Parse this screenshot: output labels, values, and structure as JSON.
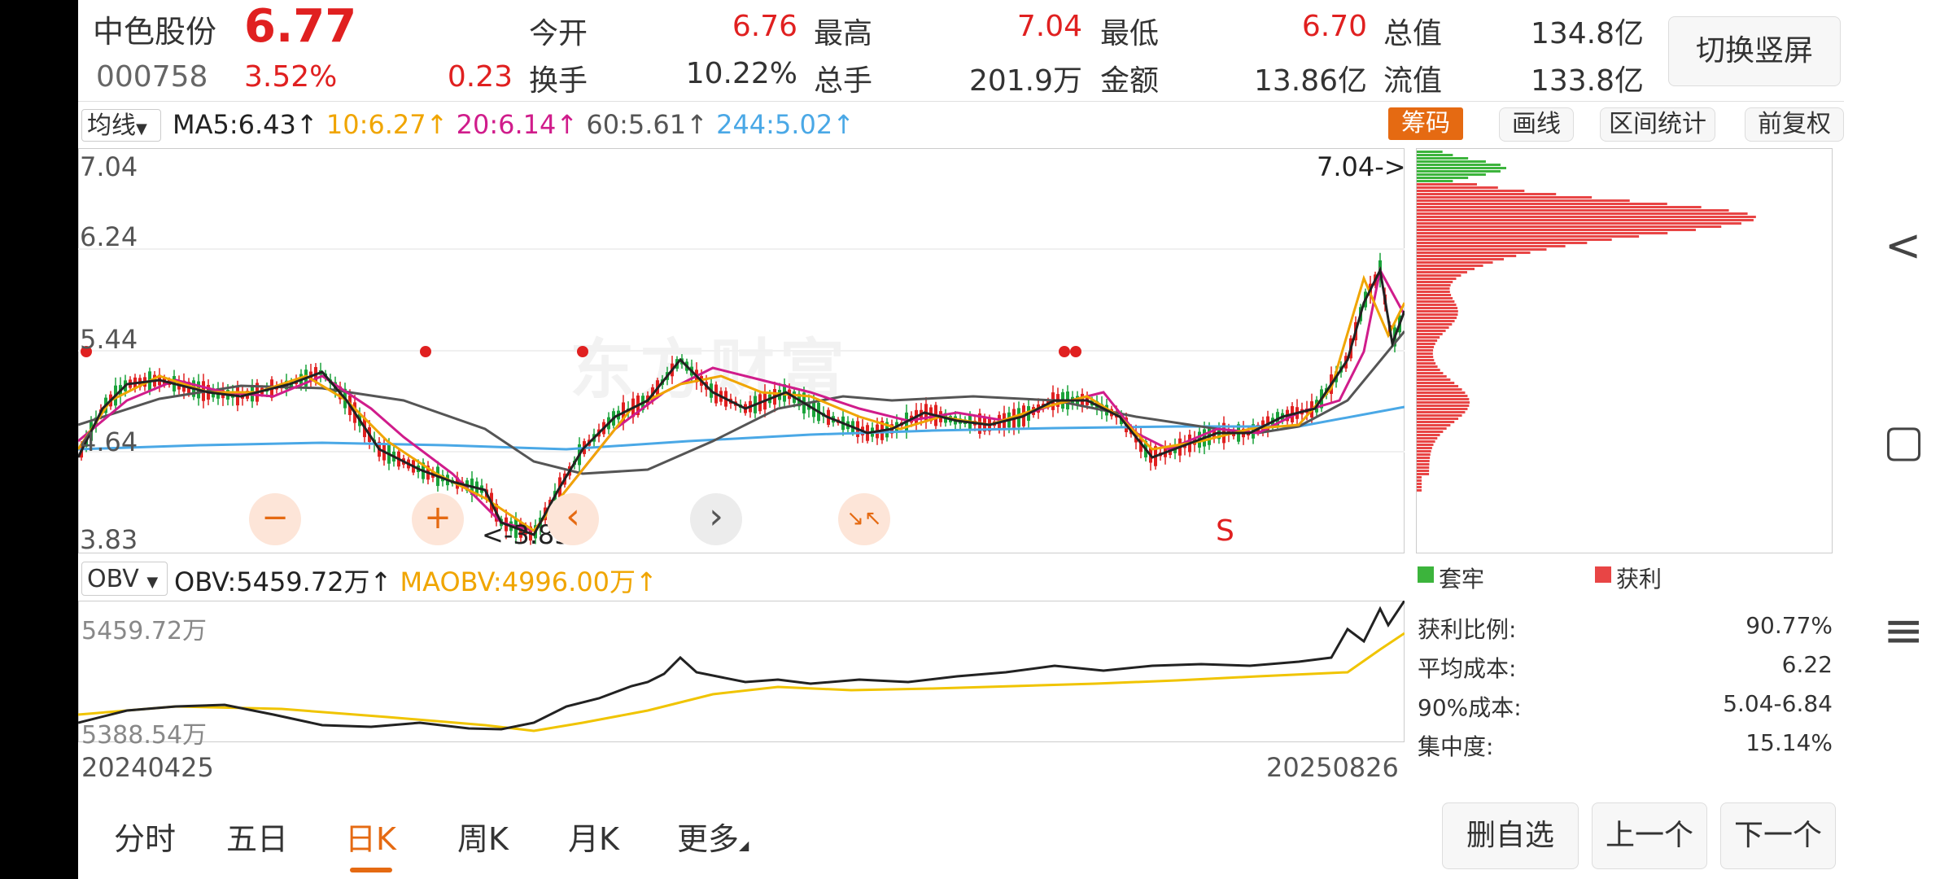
{
  "stock": {
    "name": "中色股份",
    "price": "6.77",
    "code": "000758",
    "change_pct": "3.52%",
    "change": "0.23"
  },
  "quotes": {
    "open_label": "今开",
    "open": "6.76",
    "high_label": "最高",
    "high": "7.04",
    "low_label": "最低",
    "low": "6.70",
    "mktcap_label": "总值",
    "mktcap": "134.8亿",
    "turnover_label": "换手",
    "turnover": "10.22%",
    "volume_label": "总手",
    "volume": "201.9万",
    "amount_label": "金额",
    "amount": "13.86亿",
    "float_label": "流值",
    "float": "133.8亿"
  },
  "buttons": {
    "orientation": "切换竖屏",
    "chips": "筹码",
    "draw": "画线",
    "range_stats": "区间统计",
    "adjust": "前复权"
  },
  "ma": {
    "selector": "均线",
    "ma5": "MA5:6.43",
    "ma10": "10:6.27",
    "ma20": "20:6.14",
    "ma60": "60:5.61",
    "ma244": "244:5.02",
    "colors": {
      "ma5": "#222222",
      "ma10": "#f0a500",
      "ma20": "#d01c8b",
      "ma60": "#555555",
      "ma244": "#4aa8e6"
    }
  },
  "price_axis": {
    "top": "7.04",
    "l2": "6.24",
    "l3": "5.44",
    "l4": "4.64",
    "bottom": "3.83"
  },
  "annotations": {
    "high_mark": "7.04->",
    "low_mark": "<-3.83",
    "signal": "S"
  },
  "watermark": "东方财富",
  "controls": {
    "minus": "−",
    "plus": "+",
    "prev": "‹",
    "next": "›",
    "shrink": "↘↖"
  },
  "obv": {
    "selector": "OBV",
    "value": "OBV:5459.72万",
    "ma": "MAOBV:4996.00万",
    "top_label": "5459.72万",
    "bottom_label": "5388.54万"
  },
  "dates": {
    "start": "20240425",
    "end": "20250826"
  },
  "chips": {
    "legend_trapped": "套牢",
    "legend_profit": "获利",
    "colors": {
      "trapped": "#3cb43c",
      "profit": "#e84545"
    },
    "stats": [
      {
        "label": "获利比例:",
        "value": "90.77%"
      },
      {
        "label": "平均成本:",
        "value": "6.22"
      },
      {
        "label": "90%成本:",
        "value": "5.04-6.84"
      },
      {
        "label": "集中度:",
        "value": "15.14%"
      }
    ]
  },
  "tabs": [
    "分时",
    "五日",
    "日K",
    "周K",
    "月K",
    "更多"
  ],
  "actions": {
    "remove": "删自选",
    "prev": "上一个",
    "next": "下一个"
  },
  "nav": {
    "back": "<",
    "home": "▢",
    "menu": "≡"
  }
}
